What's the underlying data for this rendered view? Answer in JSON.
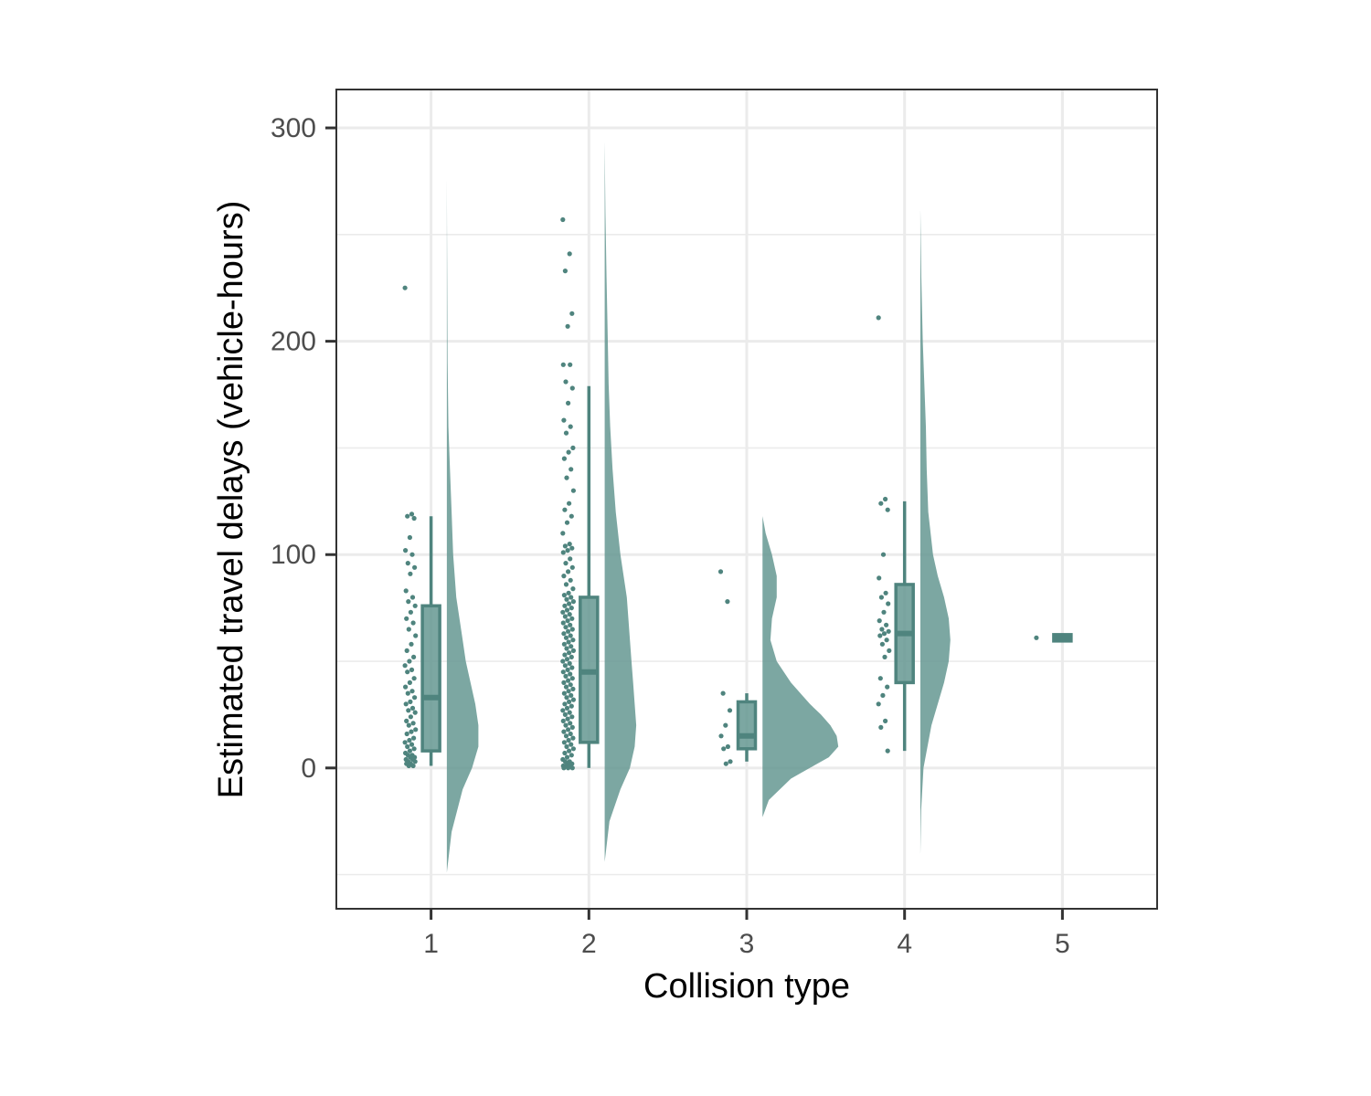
{
  "chart_data": {
    "type": "raincloud",
    "xlabel": "Collision type",
    "ylabel": "Estimated travel delays (vehicle-hours)",
    "categories": [
      "1",
      "2",
      "3",
      "4",
      "5"
    ],
    "x_ticks": [
      "1",
      "2",
      "3",
      "4",
      "5"
    ],
    "y_ticks": [
      0,
      100,
      200,
      300
    ],
    "y_tick_labels": [
      "0",
      "100",
      "200",
      "300"
    ],
    "ylim": [
      -66,
      318
    ],
    "xlim": [
      0.4,
      5.6
    ],
    "grid": true,
    "theme": "bw",
    "colors": {
      "fill": "#5f948e",
      "point": "#4f847e",
      "box_line": "#4f847e",
      "grid": "#ebebeb",
      "panel_border": "#333333"
    },
    "boxplots": [
      {
        "category": "1",
        "min": 1,
        "q1": 8,
        "median": 33,
        "q3": 76,
        "max": 118
      },
      {
        "category": "2",
        "min": 0,
        "q1": 12,
        "median": 45,
        "q3": 80,
        "max": 179
      },
      {
        "category": "3",
        "min": 3,
        "q1": 9,
        "median": 15,
        "q3": 31,
        "max": 35
      },
      {
        "category": "4",
        "min": 8,
        "q1": 40,
        "median": 63,
        "q3": 86,
        "max": 125
      },
      {
        "category": "5",
        "min": 61,
        "q1": 61,
        "median": 61,
        "q3": 61,
        "max": 61
      }
    ],
    "densities": [
      {
        "category": "1",
        "range": [
          -49,
          275
        ],
        "y": [
          -49,
          -30,
          -10,
          0,
          10,
          20,
          30,
          40,
          50,
          60,
          70,
          80,
          100,
          120,
          140,
          160,
          190,
          220,
          250,
          275
        ],
        "width": [
          0.0,
          0.03,
          0.1,
          0.16,
          0.2,
          0.2,
          0.18,
          0.15,
          0.12,
          0.1,
          0.08,
          0.06,
          0.04,
          0.03,
          0.02,
          0.01,
          0.005,
          0.003,
          0.001,
          0.0
        ]
      },
      {
        "category": "2",
        "range": [
          -44,
          293
        ],
        "y": [
          -44,
          -25,
          -10,
          0,
          10,
          20,
          30,
          40,
          50,
          60,
          70,
          80,
          100,
          120,
          140,
          160,
          180,
          200,
          230,
          260,
          293
        ],
        "width": [
          0.0,
          0.03,
          0.1,
          0.16,
          0.19,
          0.2,
          0.19,
          0.18,
          0.17,
          0.16,
          0.15,
          0.14,
          0.1,
          0.07,
          0.05,
          0.035,
          0.025,
          0.02,
          0.012,
          0.005,
          0.0
        ]
      },
      {
        "category": "3",
        "range": [
          -23,
          118
        ],
        "y": [
          -23,
          -15,
          -5,
          0,
          5,
          10,
          15,
          20,
          25,
          30,
          40,
          50,
          60,
          70,
          80,
          90,
          100,
          110,
          118
        ],
        "width": [
          0.0,
          0.04,
          0.18,
          0.3,
          0.42,
          0.48,
          0.47,
          0.43,
          0.37,
          0.3,
          0.18,
          0.09,
          0.05,
          0.06,
          0.09,
          0.09,
          0.06,
          0.02,
          0.0
        ]
      },
      {
        "category": "4",
        "range": [
          -40,
          261
        ],
        "y": [
          -40,
          -20,
          0,
          20,
          40,
          50,
          60,
          70,
          80,
          90,
          100,
          120,
          140,
          160,
          180,
          200,
          230,
          261
        ],
        "width": [
          0.0,
          0.005,
          0.02,
          0.07,
          0.15,
          0.18,
          0.19,
          0.18,
          0.15,
          0.11,
          0.08,
          0.05,
          0.04,
          0.035,
          0.025,
          0.015,
          0.006,
          0.0
        ]
      }
    ],
    "points": [
      {
        "category": "1",
        "values": [
          225,
          119,
          118,
          117,
          108,
          102,
          100,
          96,
          94,
          91,
          83,
          80,
          78,
          76,
          73,
          70,
          68,
          65,
          62,
          58,
          55,
          52,
          50,
          48,
          46,
          45,
          42,
          40,
          38,
          36,
          35,
          33,
          31,
          30,
          28,
          27,
          26,
          24,
          22,
          21,
          20,
          18,
          17,
          16,
          14,
          13,
          12,
          11,
          10,
          9,
          8,
          7,
          6,
          6,
          5,
          5,
          4,
          4,
          3,
          3,
          2,
          2,
          1,
          1
        ]
      },
      {
        "category": "2",
        "values": [
          257,
          241,
          233,
          213,
          207,
          189,
          189,
          181,
          178,
          171,
          163,
          160,
          157,
          150,
          148,
          145,
          140,
          136,
          130,
          124,
          121,
          118,
          115,
          110,
          105,
          104,
          103,
          102,
          101,
          98,
          96,
          94,
          92,
          90,
          88,
          86,
          84,
          82,
          81,
          80,
          79,
          78,
          77,
          76,
          75,
          74,
          73,
          72,
          71,
          70,
          69,
          68,
          67,
          66,
          65,
          64,
          63,
          62,
          61,
          60,
          59,
          58,
          57,
          56,
          55,
          54,
          53,
          52,
          51,
          50,
          49,
          48,
          47,
          46,
          45,
          44,
          43,
          42,
          41,
          40,
          39,
          38,
          37,
          36,
          35,
          34,
          33,
          32,
          31,
          30,
          29,
          28,
          27,
          26,
          25,
          24,
          23,
          22,
          21,
          20,
          19,
          18,
          17,
          16,
          15,
          14,
          13,
          12,
          11,
          10,
          9,
          8,
          7,
          6,
          5,
          4,
          3,
          3,
          2,
          2,
          1,
          1,
          1,
          0,
          0,
          0
        ]
      },
      {
        "category": "3",
        "values": [
          92,
          78,
          35,
          27,
          20,
          15,
          10,
          9,
          3,
          2
        ]
      },
      {
        "category": "4",
        "values": [
          211,
          126,
          124,
          121,
          100,
          89,
          82,
          80,
          77,
          73,
          69,
          67,
          65,
          64,
          63,
          62,
          60,
          58,
          55,
          52,
          42,
          38,
          34,
          30,
          22,
          19,
          8
        ]
      },
      {
        "category": "5",
        "values": [
          61
        ]
      }
    ]
  }
}
